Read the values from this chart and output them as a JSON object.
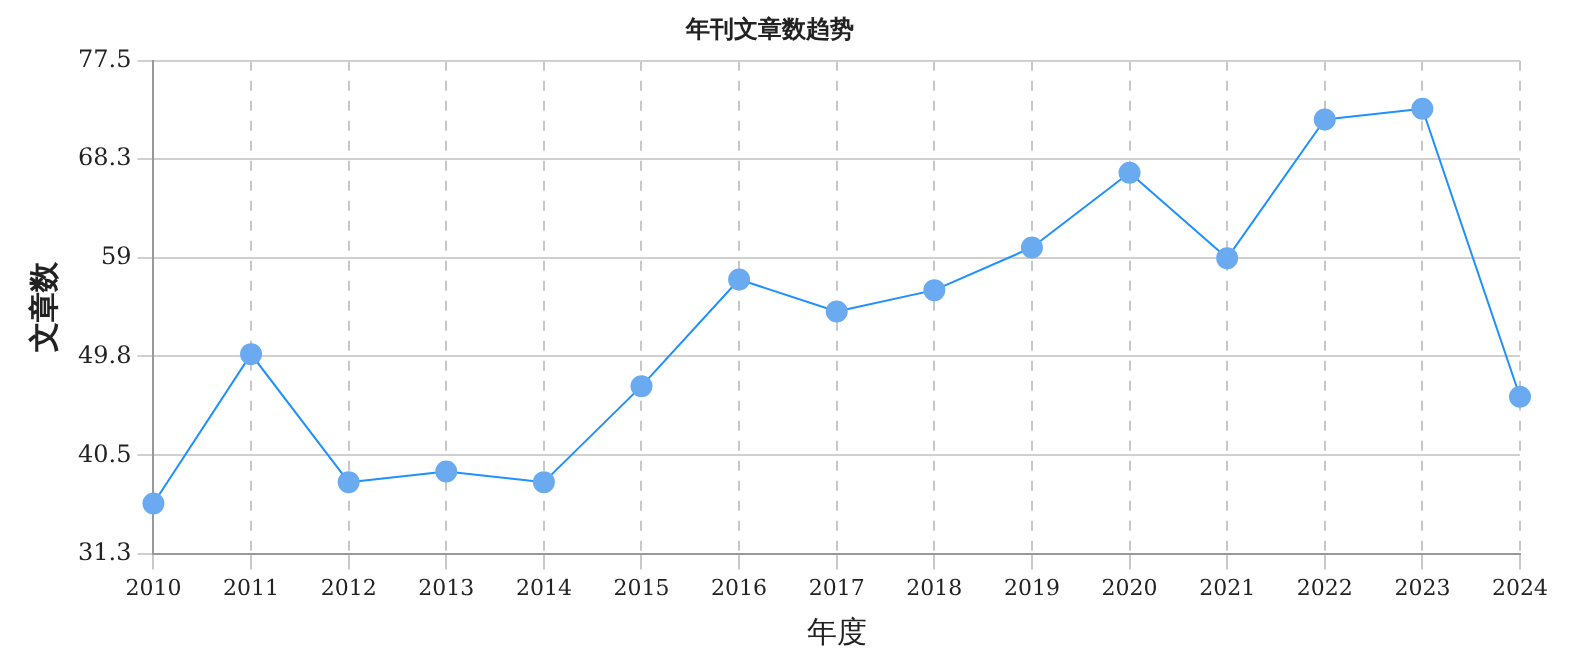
{
  "chart_data": {
    "type": "line",
    "title": "年刊文章数趋势",
    "xlabel": "年度",
    "ylabel": "文章数",
    "categories": [
      "2010",
      "2011",
      "2012",
      "2013",
      "2014",
      "2015",
      "2016",
      "2017",
      "2018",
      "2019",
      "2020",
      "2021",
      "2022",
      "2023",
      "2024"
    ],
    "series": [
      {
        "color": "#1e90ff",
        "values": [
          36,
          50,
          38,
          39,
          38,
          47,
          57,
          54,
          56,
          60,
          67,
          59,
          72,
          73,
          46
        ]
      }
    ],
    "ylim": [
      31.3,
      77.5
    ],
    "yticks": [
      31.3,
      40.5,
      49.8,
      59.0,
      68.3,
      77.5
    ],
    "grid": true,
    "marker": "circle",
    "line_style": "solid",
    "legend": false
  }
}
